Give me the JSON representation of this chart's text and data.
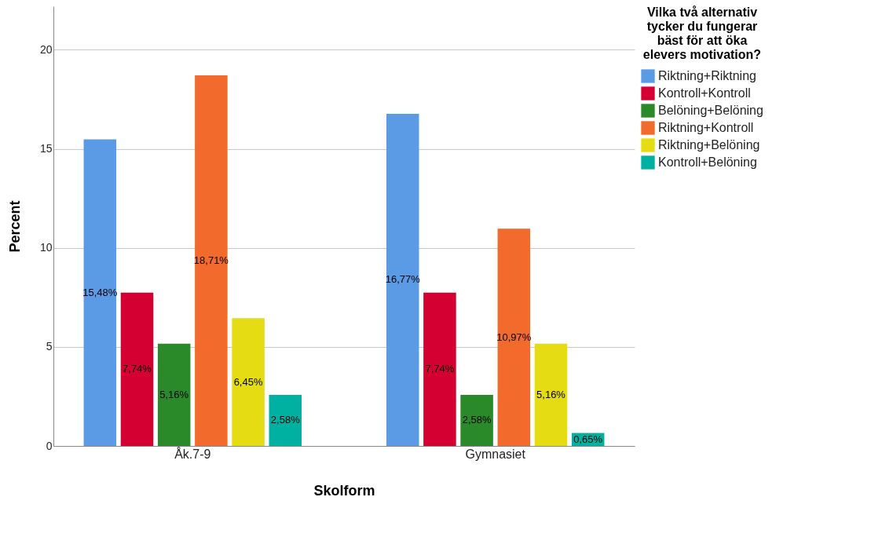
{
  "chart_data": {
    "type": "bar",
    "xlabel": "Skolform",
    "ylabel": "Percent",
    "legend_title": "Vilka två alternativ tycker du fungerar bäst för att öka elevers motivation?",
    "categories": [
      "Åk.7-9",
      "Gymnasiet"
    ],
    "series": [
      {
        "name": "Riktning+Riktning",
        "color": "#5b9be6",
        "values": [
          15.48,
          16.77
        ],
        "value_labels": [
          "15,48%",
          "16,77%"
        ]
      },
      {
        "name": "Kontroll+Kontroll",
        "color": "#d40032",
        "values": [
          7.74,
          7.74
        ],
        "value_labels": [
          "7,74%",
          "7,74%"
        ]
      },
      {
        "name": "Belöning+Belöning",
        "color": "#2a8a2a",
        "values": [
          5.16,
          2.58
        ],
        "value_labels": [
          "5,16%",
          "2,58%"
        ]
      },
      {
        "name": "Riktning+Kontroll",
        "color": "#f26a2c",
        "values": [
          18.71,
          10.97
        ],
        "value_labels": [
          "18,71%",
          "10,97%"
        ]
      },
      {
        "name": "Riktning+Belöning",
        "color": "#e5dc14",
        "values": [
          6.45,
          5.16
        ],
        "value_labels": [
          "6,45%",
          "5,16%"
        ]
      },
      {
        "name": "Kontroll+Belöning",
        "color": "#00b0a0",
        "values": [
          2.58,
          0.65
        ],
        "value_labels": [
          "2,58%",
          "0,65%"
        ]
      }
    ],
    "ylim": [
      0,
      22.2
    ],
    "yticks": [
      0,
      5,
      10,
      15,
      20
    ],
    "grid": "y",
    "legend": "top right"
  }
}
